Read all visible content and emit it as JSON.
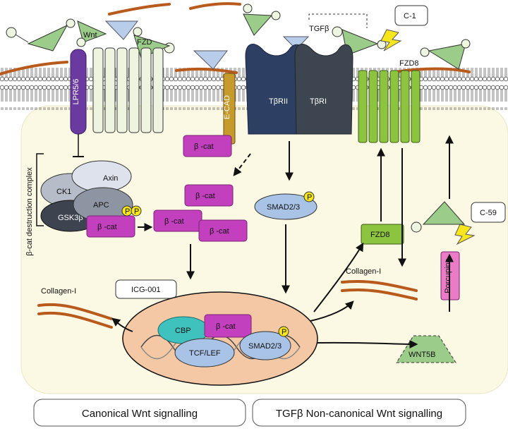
{
  "labels": {
    "wnt": "Wnt",
    "fzd": "FZD",
    "lpr": "LPR5/6",
    "ecad": "E-CAD",
    "tbrii": "TβRII",
    "tbri": "TβRI",
    "tgfb": "TGFβ",
    "c1": "C-1",
    "fzd8_top": "FZD8",
    "bcat": "β -cat",
    "destruction_complex": "β-cat destruction complex",
    "axin": "Axin",
    "ck1": "CK1",
    "apc": "APC",
    "gsk3b": "GSK3β",
    "p": "P",
    "smad": "SMAD2/3",
    "fzd8_box": "FZD8",
    "c59": "C-59",
    "collagen": "Collagen-I",
    "porcupine": "Porcupine",
    "icg": "ICG-001",
    "cbp": "CBP",
    "tcf": "TCF/LEF",
    "wnt5b": "WNT5B"
  },
  "footer": {
    "canonical": "Canonical Wnt signalling",
    "noncanonical": "TGFβ Non-canonical Wnt signalling"
  },
  "colors": {
    "cytoplasm": "#fbf8e4",
    "nucleus": "#f4c8a4",
    "bcat": "#c23fbd",
    "smad": "#a9c3e6",
    "fzd8": "#8dc43f",
    "collagen": "#b85a1c",
    "ligand_green": "#9ccc8a",
    "ligand_blue": "#b7cdea"
  }
}
